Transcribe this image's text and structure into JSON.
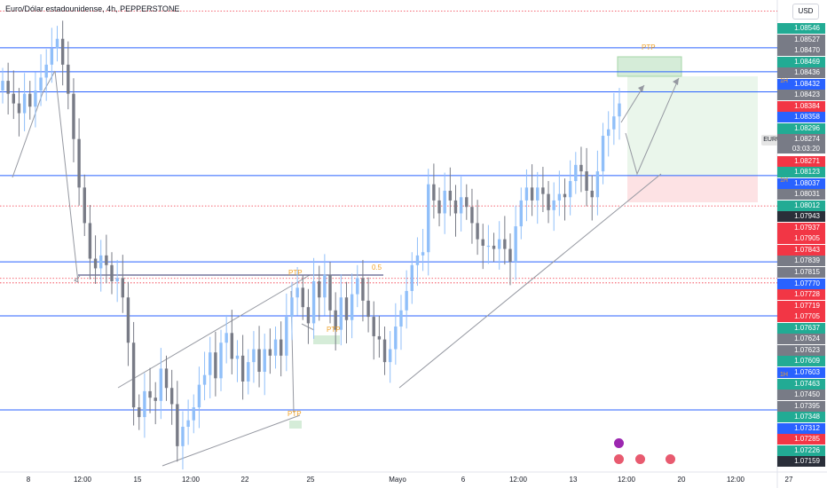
{
  "header": {
    "title": "Euro/Dólar estadounidense, 4h, PEPPERSTONE",
    "currency_label": "USD"
  },
  "current": {
    "symbol": "EURUSD",
    "price": "1.08274",
    "countdown": "03:03:20"
  },
  "price_axis": [
    {
      "label": "1.08546",
      "color": "#22ab94"
    },
    {
      "label": "1.08527",
      "color": "#787b86"
    },
    {
      "label": "1.08470",
      "color": "#787b86"
    },
    {
      "label": "1.08469",
      "color": "#22ab94"
    },
    {
      "label": "1.08436",
      "color": "#787b86"
    },
    {
      "label": "1.08432",
      "color": "#2962ff"
    },
    {
      "label": "1.08423",
      "color": "#787b86"
    },
    {
      "label": "1.08384",
      "color": "#f23645"
    },
    {
      "label": "1.08358",
      "color": "#2962ff"
    },
    {
      "label": "1.08296",
      "color": "#22ab94"
    },
    {
      "label": "1.08271",
      "color": "#f23645"
    },
    {
      "label": "1.08123",
      "color": "#22ab94"
    },
    {
      "label": "1.08037",
      "color": "#2962ff"
    },
    {
      "label": "1.08031",
      "color": "#787b86"
    },
    {
      "label": "1.08012",
      "color": "#22ab94"
    },
    {
      "label": "1.07943",
      "color": "#2a2e39"
    },
    {
      "label": "1.07937",
      "color": "#f23645"
    },
    {
      "label": "1.07905",
      "color": "#f23645"
    },
    {
      "label": "1.07843",
      "color": "#f23645"
    },
    {
      "label": "1.07839",
      "color": "#787b86"
    },
    {
      "label": "1.07815",
      "color": "#787b86"
    },
    {
      "label": "1.07770",
      "color": "#2962ff"
    },
    {
      "label": "1.07728",
      "color": "#f23645"
    },
    {
      "label": "1.07719",
      "color": "#f23645"
    },
    {
      "label": "1.07705",
      "color": "#f23645"
    },
    {
      "label": "1.07637",
      "color": "#22ab94"
    },
    {
      "label": "1.07624",
      "color": "#787b86"
    },
    {
      "label": "1.07623",
      "color": "#787b86"
    },
    {
      "label": "1.07609",
      "color": "#22ab94"
    },
    {
      "label": "1.07603",
      "color": "#2962ff"
    },
    {
      "label": "1.07463",
      "color": "#22ab94"
    },
    {
      "label": "1.07450",
      "color": "#787b86"
    },
    {
      "label": "1.07395",
      "color": "#787b86"
    },
    {
      "label": "1.07348",
      "color": "#22ab94"
    },
    {
      "label": "1.07312",
      "color": "#2962ff"
    },
    {
      "label": "1.07285",
      "color": "#f23645"
    },
    {
      "label": "1.07226",
      "color": "#22ab94"
    },
    {
      "label": "1.07159",
      "color": "#2a2e39"
    }
  ],
  "time_axis": [
    "8",
    "12:00",
    "15",
    "12:00",
    "22",
    "25",
    "Mayo",
    "6",
    "12:00",
    "13",
    "12:00",
    "20",
    "12:00",
    "27"
  ],
  "annotations": {
    "ptp": "PTP",
    "fib": "0.5",
    "h1": "1H"
  },
  "chart_data": {
    "type": "candlestick",
    "symbol": "EURUSD",
    "timeframe": "4h",
    "x_ticks": [
      "8",
      "12:00",
      "15",
      "12:00",
      "22",
      "25",
      "Mayo",
      "6",
      "12:00",
      "13",
      "12:00",
      "20",
      "12:00",
      "27"
    ],
    "ylim": [
      1.0712,
      1.0858
    ],
    "closes": [
      1.0833,
      1.0829,
      1.0826,
      1.0823,
      1.0829,
      1.0825,
      1.083,
      1.0834,
      1.0838,
      1.0843,
      1.0846,
      1.0838,
      1.0829,
      1.0815,
      1.08,
      1.0789,
      1.0778,
      1.0775,
      1.0779,
      1.0776,
      1.0771,
      1.0772,
      1.0766,
      1.0752,
      1.0732,
      1.0729,
      1.0737,
      1.0735,
      1.0734,
      1.0744,
      1.0738,
      1.0733,
      1.072,
      1.0726,
      1.0728,
      1.0732,
      1.0739,
      1.0742,
      1.0749,
      1.0741,
      1.0752,
      1.0755,
      1.0747,
      1.0748,
      1.074,
      1.0746,
      1.075,
      1.0743,
      1.075,
      1.0748,
      1.0753,
      1.0748,
      1.076,
      1.0766,
      1.0769,
      1.0763,
      1.0758,
      1.0771,
      1.0766,
      1.0773,
      1.0762,
      1.0756,
      1.0766,
      1.0759,
      1.0767,
      1.0772,
      1.0765,
      1.076,
      1.0754,
      1.0753,
      1.0746,
      1.075,
      1.0757,
      1.0762,
      1.0768,
      1.0776,
      1.0779,
      1.078,
      1.0801,
      1.0796,
      1.0792,
      1.0799,
      1.0796,
      1.0792,
      1.0797,
      1.0794,
      1.0789,
      1.0784,
      1.0782,
      1.0782,
      1.0781,
      1.0784,
      1.0781,
      1.0777,
      1.0788,
      1.0796,
      1.08,
      1.0796,
      1.08,
      1.0798,
      1.0793,
      1.0796,
      1.0798,
      1.0797,
      1.0802,
      1.0807,
      1.0805,
      1.0799,
      1.0797,
      1.0805,
      1.0816,
      1.0818,
      1.0822,
      1.0826
    ],
    "levels": [
      {
        "price": 1.08546,
        "style": "dotted",
        "color": "#f23645"
      },
      {
        "price": 1.08432,
        "style": "solid",
        "color": "#2962ff"
      },
      {
        "price": 1.08358,
        "style": "solid",
        "color": "#2962ff"
      },
      {
        "price": 1.08296,
        "style": "solid",
        "color": "#2962ff"
      },
      {
        "price": 1.08037,
        "style": "solid",
        "color": "#2962ff"
      },
      {
        "price": 1.07943,
        "style": "dotted",
        "color": "#f23645"
      },
      {
        "price": 1.0777,
        "style": "solid",
        "color": "#2962ff"
      },
      {
        "price": 1.07719,
        "style": "dotted",
        "color": "#f23645"
      },
      {
        "price": 1.07705,
        "style": "dotted",
        "color": "#f23645"
      },
      {
        "price": 1.07603,
        "style": "solid",
        "color": "#2962ff"
      },
      {
        "price": 1.07312,
        "style": "solid",
        "color": "#2962ff"
      }
    ],
    "grid": true
  }
}
